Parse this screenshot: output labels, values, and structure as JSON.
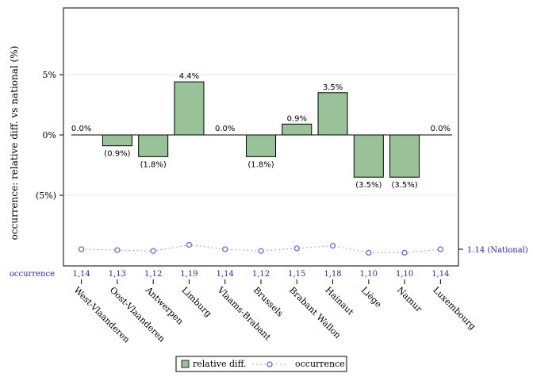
{
  "chart_data": {
    "type": "bar",
    "title": "",
    "ylabel": "occurrence: relative diff. vs national (%)",
    "xlabel": "",
    "ylim": [
      -10.5,
      10.5
    ],
    "yticks": [
      5,
      0,
      -5
    ],
    "ytick_labels": [
      "5%",
      "0%",
      "(5%)"
    ],
    "categories": [
      "West-Vlaanderen",
      "Oost-Vlaanderen",
      "Antwerpen",
      "Limburg",
      "Vlaams-Brabant",
      "Brussels",
      "Brabant Wallon",
      "Hainaut",
      "Liège",
      "Namur",
      "Luxembourg"
    ],
    "series": [
      {
        "name": "relative diff.",
        "values": [
          0.0,
          -0.9,
          -1.8,
          4.4,
          0.0,
          -1.8,
          0.9,
          3.5,
          -3.5,
          -3.5,
          0.0
        ],
        "labels": [
          "0.0%",
          "(0.9%)",
          "(1.8%)",
          "4.4%",
          "0.0%",
          "(1.8%)",
          "0.9%",
          "3.5%",
          "(3.5%)",
          "(3.5%)",
          "0.0%"
        ],
        "color": "#99c299"
      },
      {
        "name": "occurrence",
        "values": [
          1.14,
          1.13,
          1.12,
          1.19,
          1.14,
          1.12,
          1.15,
          1.18,
          1.1,
          1.1,
          1.14
        ],
        "labels": [
          "1,14",
          "1,13",
          "1,12",
          "1,19",
          "1,14",
          "1,12",
          "1,15",
          "1,18",
          "1,10",
          "1,10",
          "1,14"
        ],
        "color": "#6b6bd8"
      }
    ],
    "occurrence_row_label": "occurrence",
    "national_value": 1.14,
    "national_label": "1.14 (National)",
    "grid": true,
    "legend": "bottom-center",
    "legend_entries": [
      "relative diff.",
      "occurrence"
    ]
  }
}
